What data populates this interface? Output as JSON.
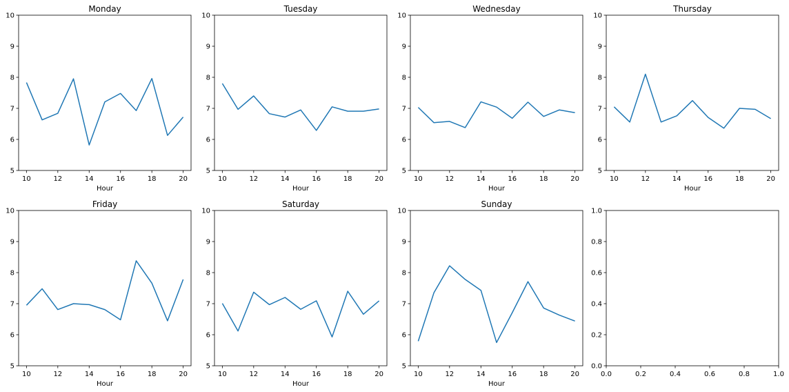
{
  "figure": {
    "line_color": "#1f77b4",
    "axis_color": "#000000"
  },
  "chart_data": [
    {
      "type": "line",
      "title": "Monday",
      "xlabel": "Hour",
      "ylabel": "",
      "x": [
        10,
        11,
        12,
        13,
        14,
        15,
        16,
        17,
        18,
        19,
        20
      ],
      "series": [
        {
          "values": [
            7.83,
            6.63,
            6.84,
            7.95,
            5.82,
            7.21,
            7.48,
            6.93,
            7.96,
            6.13,
            6.72
          ]
        }
      ],
      "xlim": [
        9.5,
        20.5
      ],
      "ylim": [
        5,
        10
      ],
      "xticks": [
        10,
        12,
        14,
        16,
        18,
        20
      ],
      "yticks": [
        5,
        6,
        7,
        8,
        9,
        10
      ],
      "grid": false
    },
    {
      "type": "line",
      "title": "Tuesday",
      "xlabel": "Hour",
      "ylabel": "",
      "x": [
        10,
        11,
        12,
        13,
        14,
        15,
        16,
        17,
        18,
        19,
        20
      ],
      "series": [
        {
          "values": [
            7.8,
            6.97,
            7.4,
            6.83,
            6.72,
            6.95,
            6.29,
            7.05,
            6.91,
            6.91,
            6.98
          ]
        }
      ],
      "xlim": [
        9.5,
        20.5
      ],
      "ylim": [
        5,
        10
      ],
      "xticks": [
        10,
        12,
        14,
        16,
        18,
        20
      ],
      "yticks": [
        5,
        6,
        7,
        8,
        9,
        10
      ],
      "grid": false
    },
    {
      "type": "line",
      "title": "Wednesday",
      "xlabel": "Hour",
      "ylabel": "",
      "x": [
        10,
        11,
        12,
        13,
        14,
        15,
        16,
        17,
        18,
        19,
        20
      ],
      "series": [
        {
          "values": [
            7.03,
            6.54,
            6.58,
            6.38,
            7.21,
            7.04,
            6.68,
            7.2,
            6.74,
            6.95,
            6.86
          ]
        }
      ],
      "xlim": [
        9.5,
        20.5
      ],
      "ylim": [
        5,
        10
      ],
      "xticks": [
        10,
        12,
        14,
        16,
        18,
        20
      ],
      "yticks": [
        5,
        6,
        7,
        8,
        9,
        10
      ],
      "grid": false
    },
    {
      "type": "line",
      "title": "Thursday",
      "xlabel": "Hour",
      "ylabel": "",
      "x": [
        10,
        11,
        12,
        13,
        14,
        15,
        16,
        17,
        18,
        19,
        20
      ],
      "series": [
        {
          "values": [
            7.05,
            6.56,
            8.1,
            6.56,
            6.76,
            7.25,
            6.71,
            6.36,
            7.0,
            6.97,
            6.67
          ]
        }
      ],
      "xlim": [
        9.5,
        20.5
      ],
      "ylim": [
        5,
        10
      ],
      "xticks": [
        10,
        12,
        14,
        16,
        18,
        20
      ],
      "yticks": [
        5,
        6,
        7,
        8,
        9,
        10
      ],
      "grid": false
    },
    {
      "type": "line",
      "title": "Friday",
      "xlabel": "Hour",
      "ylabel": "",
      "x": [
        10,
        11,
        12,
        13,
        14,
        15,
        16,
        17,
        18,
        19,
        20
      ],
      "series": [
        {
          "values": [
            6.95,
            7.48,
            6.81,
            7.0,
            6.97,
            6.81,
            6.48,
            8.38,
            7.66,
            6.45,
            7.78
          ]
        }
      ],
      "xlim": [
        9.5,
        20.5
      ],
      "ylim": [
        5,
        10
      ],
      "xticks": [
        10,
        12,
        14,
        16,
        18,
        20
      ],
      "yticks": [
        5,
        6,
        7,
        8,
        9,
        10
      ],
      "grid": false
    },
    {
      "type": "line",
      "title": "Saturday",
      "xlabel": "Hour",
      "ylabel": "",
      "x": [
        10,
        11,
        12,
        13,
        14,
        15,
        16,
        17,
        18,
        19,
        20
      ],
      "series": [
        {
          "values": [
            7.01,
            6.12,
            7.37,
            6.97,
            7.2,
            6.82,
            7.09,
            5.93,
            7.4,
            6.66,
            7.09
          ]
        }
      ],
      "xlim": [
        9.5,
        20.5
      ],
      "ylim": [
        5,
        10
      ],
      "xticks": [
        10,
        12,
        14,
        16,
        18,
        20
      ],
      "yticks": [
        5,
        6,
        7,
        8,
        9,
        10
      ],
      "grid": false
    },
    {
      "type": "line",
      "title": "Sunday",
      "xlabel": "Hour",
      "ylabel": "",
      "x": [
        10,
        11,
        12,
        13,
        14,
        15,
        16,
        17,
        18,
        19,
        20
      ],
      "series": [
        {
          "values": [
            5.79,
            7.35,
            8.22,
            7.78,
            7.43,
            5.75,
            6.71,
            7.71,
            6.86,
            6.63,
            6.44
          ]
        }
      ],
      "xlim": [
        9.5,
        20.5
      ],
      "ylim": [
        5,
        10
      ],
      "xticks": [
        10,
        12,
        14,
        16,
        18,
        20
      ],
      "yticks": [
        5,
        6,
        7,
        8,
        9,
        10
      ],
      "grid": false
    },
    {
      "type": "line",
      "title": "",
      "xlabel": "",
      "ylabel": "",
      "x": [],
      "series": [],
      "xlim": [
        0,
        1
      ],
      "ylim": [
        0,
        1
      ],
      "xticks": [
        0.0,
        0.2,
        0.4,
        0.6,
        0.8,
        1.0
      ],
      "yticks": [
        0.0,
        0.2,
        0.4,
        0.6,
        0.8,
        1.0
      ],
      "tick_format": "1dp",
      "grid": false
    }
  ]
}
